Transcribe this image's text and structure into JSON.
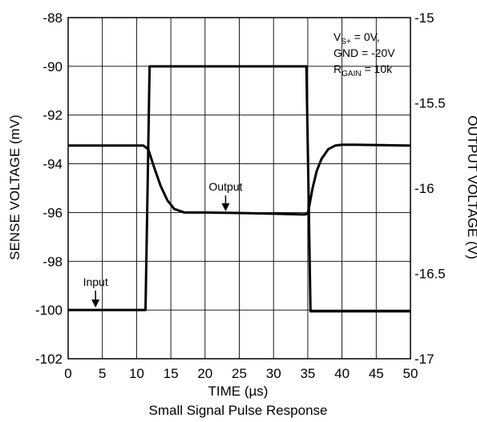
{
  "chart_data": {
    "type": "line",
    "title": "Small Signal Pulse Response",
    "xlabel": "TIME (µs)",
    "ylabel_left": "SENSE VOLTAGE (mV)",
    "ylabel_right": "OUTPUT VOLTAGE (V)",
    "xlim": [
      0,
      50
    ],
    "ylim_left": [
      -102,
      -88
    ],
    "ylim_right": [
      -17,
      -15
    ],
    "x_ticks": [
      "0",
      "5",
      "10",
      "15",
      "20",
      "25",
      "30",
      "35",
      "40",
      "45",
      "50"
    ],
    "y_ticks_left": [
      "-88",
      "-90",
      "-92",
      "-94",
      "-96",
      "-98",
      "-100",
      "-102"
    ],
    "y_ticks_right": [
      "-15",
      "-15.5",
      "-16",
      "-16.5",
      "-17"
    ],
    "grid": true,
    "conditions": {
      "vs": "V",
      "vs_sub": "S+",
      "vs_value": " = 0V,",
      "gnd": "GND = -20V",
      "rgain": "R",
      "rgain_sub": "GAIN",
      "rgain_value": " = 10k"
    },
    "series": [
      {
        "name": "Input",
        "axis": "left",
        "x": [
          0,
          11.3,
          11.6,
          11.9,
          34.8,
          35.1,
          35.4,
          50
        ],
        "y": [
          -100,
          -100,
          -95,
          -90,
          -90,
          -95,
          -100.05,
          -100.05
        ]
      },
      {
        "name": "Output",
        "axis": "left",
        "x": [
          0,
          11.0,
          11.7,
          12.5,
          13.5,
          14.5,
          15.5,
          17,
          20,
          25,
          30,
          34.5,
          35.0,
          35.3,
          35.7,
          36.3,
          37,
          38,
          39,
          40,
          42,
          50
        ],
        "y": [
          -93.25,
          -93.25,
          -93.4,
          -94.1,
          -94.9,
          -95.5,
          -95.85,
          -96.0,
          -96.0,
          -96.02,
          -96.05,
          -96.08,
          -96.05,
          -95.6,
          -95.0,
          -94.3,
          -93.8,
          -93.4,
          -93.25,
          -93.22,
          -93.22,
          -93.25
        ]
      }
    ],
    "annotations": [
      {
        "text": "Output",
        "x": 23,
        "y": -95.3,
        "arrow_to_y": -95.95
      },
      {
        "text": "Input",
        "x": 4,
        "y": -99.2,
        "arrow_to_y": -99.9
      }
    ]
  }
}
